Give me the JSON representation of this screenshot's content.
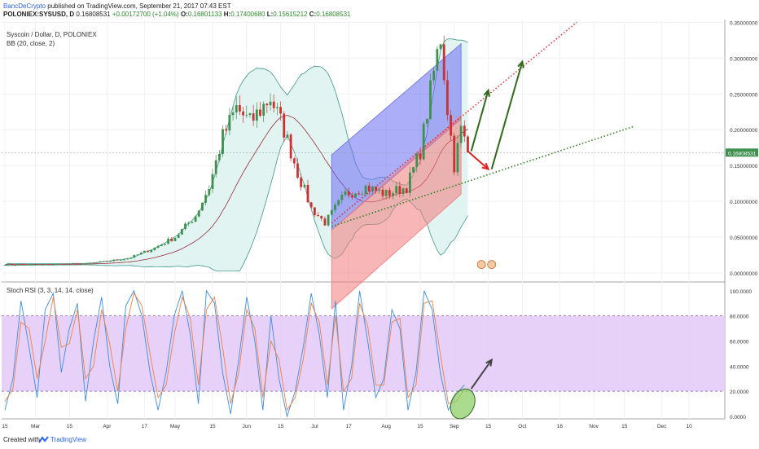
{
  "header": {
    "author": "BancDeCrypto",
    "published_text": " published on TradingView.com, September 21, 2017 07:43 EST",
    "symbol_line": "POLONIEX:SYSUSD, D",
    "price_now": "0.16808531",
    "change": "+0.00172700 (+1.04%)",
    "o_label": "O:",
    "o_value": "0.16801133",
    "h_label": "H:",
    "h_value": "0.17400680",
    "l_label": "L:",
    "l_value": "0.15615212",
    "c_label": "C:",
    "c_value": "0.16808531"
  },
  "legend": {
    "title": "Syscoin / Dollar, D, POLONIEX",
    "indicator": "BB (20, close, 2)"
  },
  "stoch_legend": "Stoch RSI (3, 3, 14, 14, close)",
  "footer": {
    "created": "Created with",
    "brand": "TradingView"
  },
  "colors": {
    "candle_up": "#3f8f4f",
    "candle_down": "#cc3030",
    "bb_fill": "#dff3ef",
    "bb_band": "#3d9a8a",
    "bb_basis": "#9b2a3a",
    "channel_blue": "#6a6cf2",
    "channel_red": "#f27a7a",
    "stoch_fill": "#e3c9f7",
    "stoch_k": "#3a8ee6",
    "stoch_d": "#f08040",
    "arrow_green": "#2e6b1a",
    "arrow_red": "#e02020"
  },
  "chart_data": [
    {
      "type": "candlestick",
      "title": "Syscoin / Dollar, D, POLONIEX",
      "last_price": 0.16808531,
      "y_ticks": [
        "0.35000000",
        "0.30000000",
        "0.25000000",
        "0.20000000",
        "0.15000000",
        "0.10000000",
        "0.05000000",
        "0.00000000"
      ],
      "ylim": [
        0.0,
        0.37
      ],
      "x_ticks": [
        "15",
        "Mar",
        "15",
        "Apr",
        "17",
        "May",
        "15",
        "Jun",
        "15",
        "Jul",
        "17",
        "Aug",
        "15",
        "Sep",
        "15",
        "Oct",
        "16",
        "Nov",
        "15",
        "Dec",
        "10"
      ],
      "close_path": [
        [
          0,
          0.012
        ],
        [
          12,
          0.012
        ],
        [
          24,
          0.013
        ],
        [
          36,
          0.02
        ],
        [
          44,
          0.035
        ],
        [
          50,
          0.05
        ],
        [
          56,
          0.08
        ],
        [
          60,
          0.12
        ],
        [
          64,
          0.19
        ],
        [
          68,
          0.23
        ],
        [
          72,
          0.21
        ],
        [
          78,
          0.245
        ],
        [
          82,
          0.2
        ],
        [
          86,
          0.14
        ],
        [
          90,
          0.09
        ],
        [
          94,
          0.07
        ],
        [
          100,
          0.11
        ],
        [
          106,
          0.12
        ],
        [
          112,
          0.11
        ],
        [
          118,
          0.12
        ],
        [
          122,
          0.17
        ],
        [
          126,
          0.28
        ],
        [
          128,
          0.33
        ],
        [
          130,
          0.23
        ],
        [
          132,
          0.15
        ],
        [
          134,
          0.2
        ],
        [
          136,
          0.17
        ]
      ],
      "bollinger": {
        "period": 20,
        "source": "close",
        "mult": 2
      },
      "annotations": [
        {
          "type": "parallel_channel",
          "fill": "blue",
          "from": {
            "x": 96,
            "y": 0.165
          },
          "to": {
            "x": 134,
            "y": 0.32
          }
        },
        {
          "type": "parallel_channel",
          "fill": "red",
          "from": {
            "x": 96,
            "y": 0.06
          },
          "to": {
            "x": 134,
            "y": 0.22
          }
        },
        {
          "type": "trend_line",
          "color": "red",
          "dotted": true,
          "from": {
            "x": 96,
            "y": 0.07
          },
          "to": {
            "x": 168,
            "y": 0.35
          }
        },
        {
          "type": "trend_line",
          "color": "green",
          "dotted": true,
          "from": {
            "x": 96,
            "y": 0.065
          },
          "to": {
            "x": 185,
            "y": 0.205
          }
        },
        {
          "type": "arrow",
          "color": "red",
          "from": {
            "x": 136,
            "y": 0.17
          },
          "to": {
            "x": 142,
            "y": 0.145
          }
        },
        {
          "type": "arrow",
          "color": "green",
          "from": {
            "x": 137,
            "y": 0.17
          },
          "to": {
            "x": 142,
            "y": 0.255
          }
        },
        {
          "type": "arrow",
          "color": "green",
          "from": {
            "x": 143,
            "y": 0.145
          },
          "to": {
            "x": 152,
            "y": 0.295
          }
        }
      ]
    },
    {
      "type": "line",
      "title": "Stoch RSI (3, 3, 14, 14, close)",
      "y_ticks": [
        "100.0000",
        "80.0000",
        "60.0000",
        "40.0000",
        "20.0000",
        "0.0000"
      ],
      "ylim": [
        0,
        100
      ],
      "bands": [
        20,
        80
      ],
      "series": [
        {
          "name": "K",
          "values": [
            5,
            30,
            92,
            55,
            15,
            85,
            98,
            35,
            70,
            90,
            12,
            60,
            95,
            40,
            10,
            88,
            100,
            80,
            35,
            5,
            35,
            80,
            100,
            65,
            10,
            100,
            90,
            35,
            2,
            45,
            95,
            60,
            5,
            80,
            30,
            0,
            20,
            55,
            98,
            65,
            15,
            92,
            5,
            40,
            100,
            60,
            15,
            30,
            85,
            70,
            5,
            35,
            100,
            85,
            35,
            5,
            18,
            25
          ]
        },
        {
          "name": "D",
          "values": [
            12,
            22,
            75,
            70,
            30,
            60,
            95,
            55,
            58,
            85,
            30,
            40,
            85,
            58,
            20,
            70,
            98,
            88,
            50,
            15,
            25,
            65,
            95,
            78,
            25,
            85,
            95,
            55,
            10,
            35,
            85,
            70,
            15,
            60,
            45,
            5,
            15,
            45,
            90,
            75,
            25,
            80,
            20,
            30,
            90,
            72,
            25,
            25,
            75,
            78,
            15,
            25,
            90,
            92,
            50,
            10,
            12,
            22
          ]
        }
      ]
    }
  ]
}
